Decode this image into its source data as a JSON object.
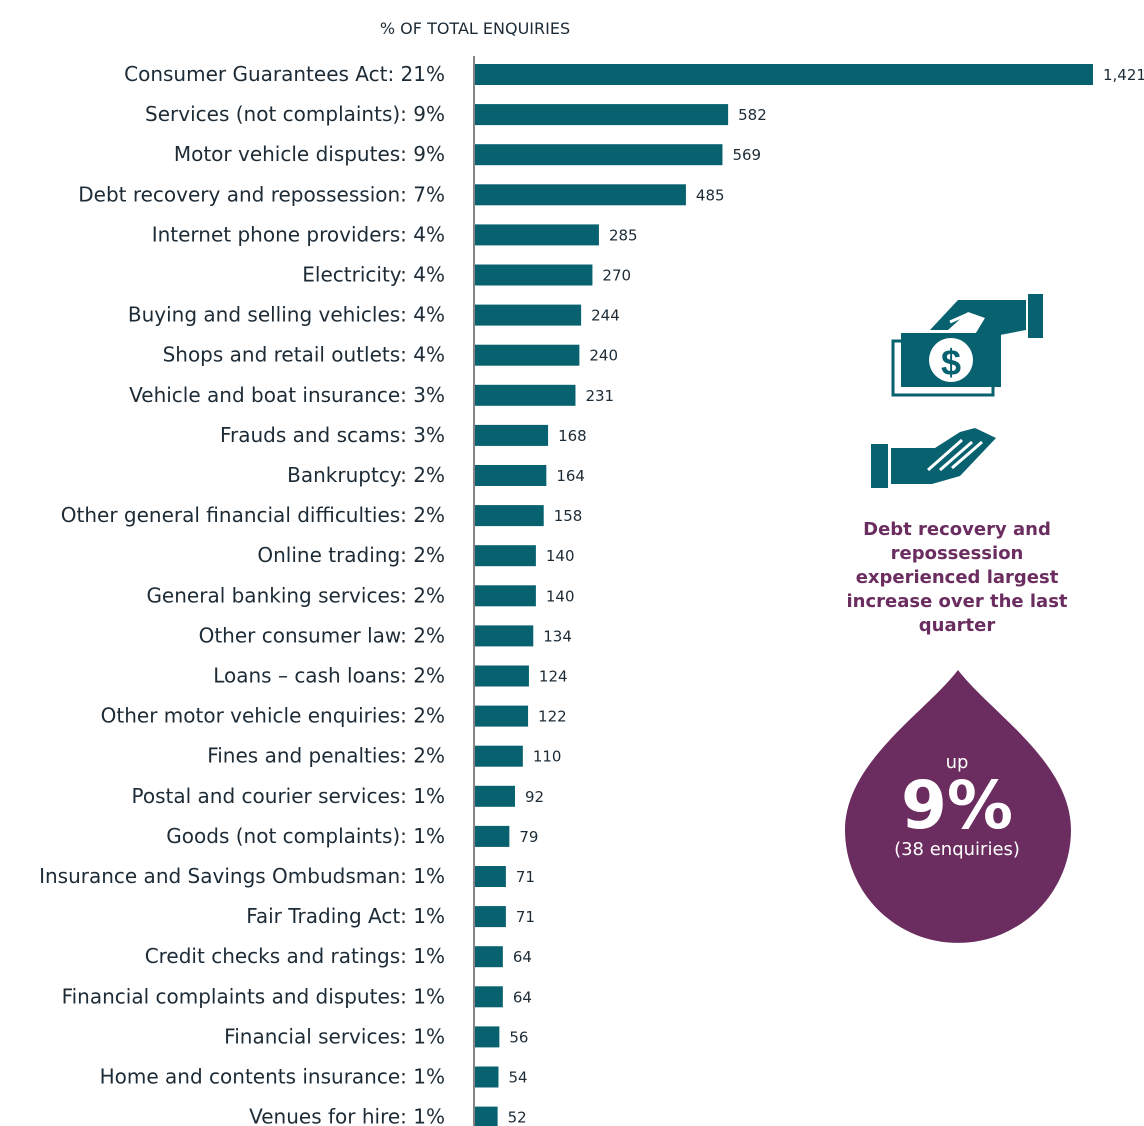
{
  "chart_data": {
    "type": "bar",
    "orientation": "horizontal",
    "title": "% OF TOTAL ENQUIRIES",
    "categories": [
      "Consumer Guarantees Act: 21%",
      "Services (not complaints): 9%",
      "Motor vehicle disputes: 9%",
      "Debt recovery and repossession: 7%",
      "Internet phone providers: 4%",
      "Electricity: 4%",
      "Buying and selling vehicles: 4%",
      "Shops and retail outlets: 4%",
      "Vehicle and boat insurance: 3%",
      "Frauds and scams: 3%",
      "Bankruptcy: 2%",
      "Other general financial difficulties: 2%",
      "Online trading: 2%",
      "General banking services: 2%",
      "Other consumer law: 2%",
      "Loans – cash loans: 2%",
      "Other motor vehicle enquiries: 2%",
      "Fines and penalties: 2%",
      "Postal and courier services: 1%",
      "Goods (not complaints): 1%",
      "Insurance and Savings Ombudsman: 1%",
      "Fair Trading Act: 1%",
      "Credit checks and ratings: 1%",
      "Financial complaints and disputes: 1%",
      "Financial services: 1%",
      "Home and contents insurance: 1%",
      "Venues for hire: 1%"
    ],
    "values": [
      1421,
      582,
      569,
      485,
      285,
      270,
      244,
      240,
      231,
      168,
      164,
      158,
      140,
      140,
      134,
      124,
      122,
      110,
      92,
      79,
      71,
      71,
      64,
      64,
      56,
      54,
      52
    ],
    "value_labels": [
      "1,421",
      "582",
      "569",
      "485",
      "285",
      "270",
      "244",
      "240",
      "231",
      "168",
      "164",
      "158",
      "140",
      "140",
      "134",
      "124",
      "122",
      "110",
      "92",
      "79",
      "71",
      "71",
      "64",
      "64",
      "56",
      "54",
      "52"
    ],
    "bar_color": "#07616f",
    "xlim": [
      0,
      1421
    ]
  },
  "callout": {
    "text": "Debt recovery and repossession experienced largest increase over the last quarter",
    "color": "#6b2d5f",
    "icons": [
      "money-handover-icon",
      "open-hand-icon"
    ]
  },
  "highlight": {
    "prefix": "up",
    "value": "9%",
    "detail": "(38 enquiries)",
    "color": "#6b2d5f"
  }
}
